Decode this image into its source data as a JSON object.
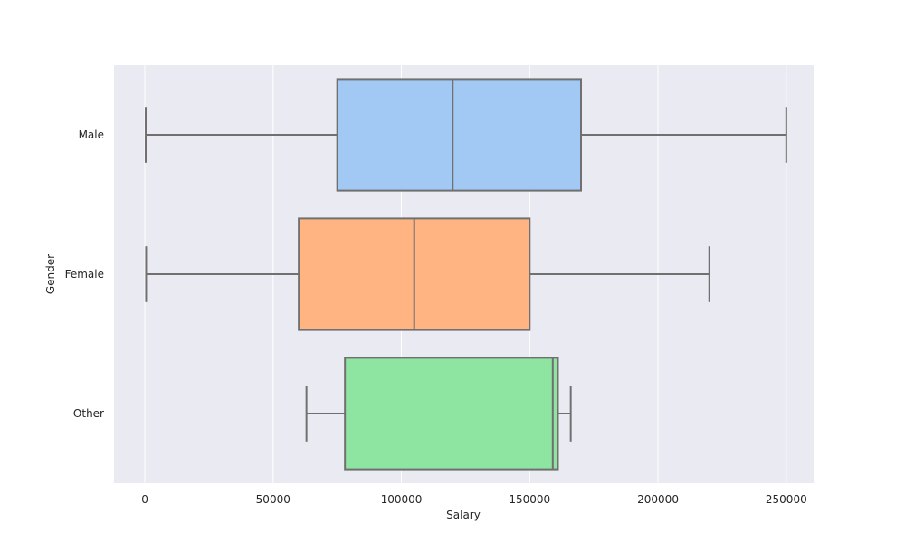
{
  "chart_data": {
    "type": "box",
    "orientation": "horizontal",
    "title": "",
    "xlabel": "Salary",
    "ylabel": "Gender",
    "xlim": [
      -12000,
      261000
    ],
    "xticks": [
      0,
      50000,
      100000,
      150000,
      200000,
      250000
    ],
    "xtick_labels": [
      "0",
      "50000",
      "100000",
      "150000",
      "200000",
      "250000"
    ],
    "grid": true,
    "style": {
      "plot_background": "#eaeaf2",
      "grid_color": "#ffffff",
      "line_color": "#707070"
    },
    "categories": [
      "Male",
      "Female",
      "Other"
    ],
    "boxes": [
      {
        "name": "Male",
        "whisker_low": 350,
        "q1": 75000,
        "median": 120000,
        "q3": 170000,
        "whisker_high": 250000,
        "color": "#a1c9f4"
      },
      {
        "name": "Female",
        "whisker_low": 500,
        "q1": 60000,
        "median": 105000,
        "q3": 150000,
        "whisker_high": 220000,
        "color": "#ffb482"
      },
      {
        "name": "Other",
        "whisker_low": 63000,
        "q1": 78000,
        "median": 159000,
        "q3": 161000,
        "whisker_high": 166000,
        "color": "#8de5a1"
      }
    ]
  }
}
